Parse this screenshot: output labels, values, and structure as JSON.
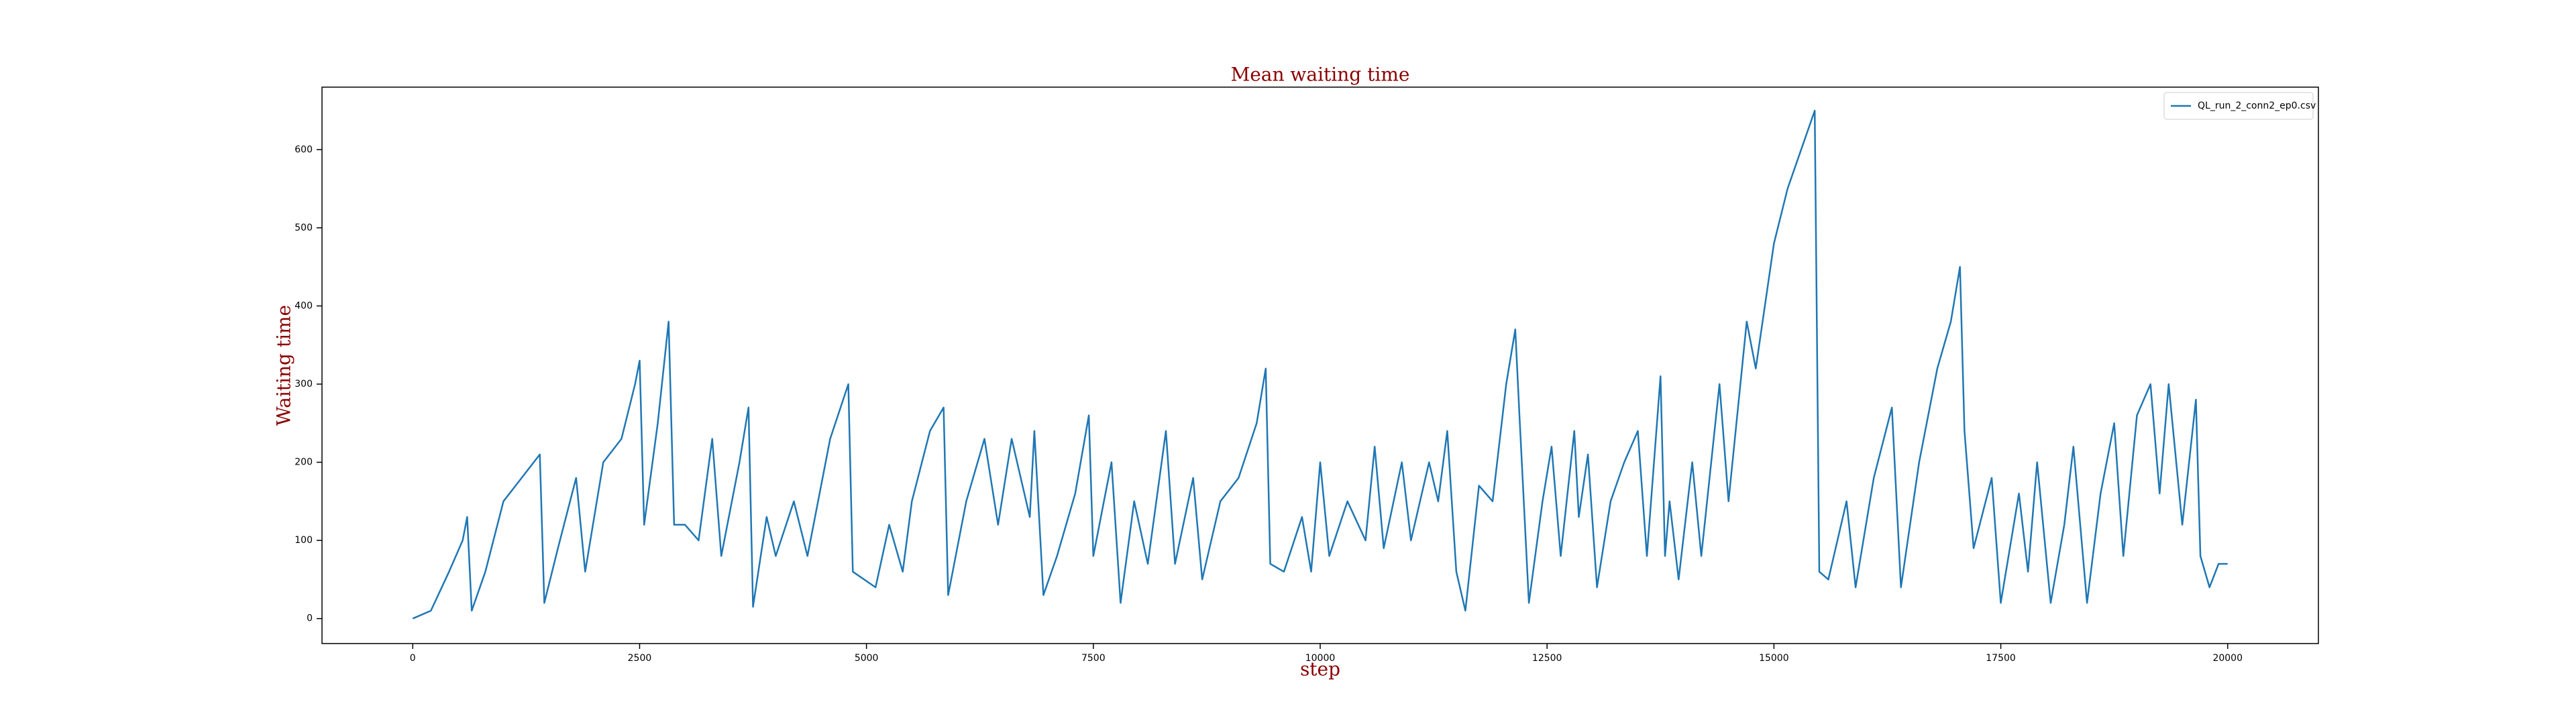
{
  "chart_data": {
    "type": "line",
    "title": "Mean waiting time",
    "x_label": "step",
    "y_label": "Waiting time",
    "xlim": [
      -1000,
      21000
    ],
    "ylim": [
      -32,
      680
    ],
    "xticks": [
      0,
      2500,
      5000,
      7500,
      10000,
      12500,
      15000,
      17500,
      20000
    ],
    "yticks": [
      0,
      100,
      200,
      300,
      400,
      500,
      600
    ],
    "grid": false,
    "legend": "upper right",
    "x": [
      0,
      200,
      400,
      550,
      600,
      650,
      800,
      1000,
      1200,
      1400,
      1450,
      1600,
      1800,
      1900,
      2100,
      2300,
      2450,
      2500,
      2550,
      2700,
      2820,
      2880,
      3000,
      3150,
      3300,
      3400,
      3600,
      3700,
      3750,
      3900,
      4000,
      4200,
      4350,
      4600,
      4800,
      4850,
      5100,
      5250,
      5400,
      5500,
      5700,
      5850,
      5900,
      6100,
      6300,
      6450,
      6600,
      6800,
      6850,
      6950,
      7100,
      7300,
      7450,
      7500,
      7700,
      7800,
      7950,
      8100,
      8300,
      8400,
      8600,
      8700,
      8900,
      9100,
      9300,
      9400,
      9450,
      9600,
      9800,
      9900,
      10000,
      10100,
      10300,
      10500,
      10600,
      10700,
      10900,
      11000,
      11200,
      11300,
      11400,
      11500,
      11600,
      11750,
      11900,
      12050,
      12150,
      12200,
      12300,
      12450,
      12550,
      12650,
      12800,
      12850,
      12950,
      13050,
      13200,
      13350,
      13500,
      13600,
      13750,
      13800,
      13850,
      13950,
      14100,
      14200,
      14400,
      14500,
      14700,
      14800,
      15000,
      15150,
      15300,
      15450,
      15500,
      15600,
      15800,
      15900,
      16100,
      16300,
      16400,
      16600,
      16800,
      16950,
      17050,
      17100,
      17200,
      17400,
      17500,
      17700,
      17800,
      17900,
      18050,
      18200,
      18300,
      18450,
      18600,
      18750,
      18850,
      19000,
      19150,
      19250,
      19350,
      19500,
      19650,
      19700,
      19800,
      19900,
      20000
    ],
    "series": [
      {
        "name": "QL_run_2_conn2_ep0.csv",
        "color": "#1f77b4",
        "values": [
          0,
          10,
          60,
          100,
          130,
          10,
          60,
          150,
          180,
          210,
          20,
          90,
          180,
          60,
          200,
          230,
          300,
          330,
          120,
          250,
          380,
          120,
          120,
          100,
          230,
          80,
          200,
          270,
          15,
          130,
          80,
          150,
          80,
          230,
          300,
          60,
          40,
          120,
          60,
          150,
          240,
          270,
          30,
          150,
          230,
          120,
          230,
          130,
          240,
          30,
          80,
          160,
          260,
          80,
          200,
          20,
          150,
          70,
          240,
          70,
          180,
          50,
          150,
          180,
          250,
          320,
          70,
          60,
          130,
          60,
          200,
          80,
          150,
          100,
          220,
          90,
          200,
          100,
          200,
          150,
          240,
          60,
          10,
          170,
          150,
          300,
          370,
          250,
          20,
          150,
          220,
          80,
          240,
          130,
          210,
          40,
          150,
          200,
          240,
          80,
          310,
          80,
          150,
          50,
          200,
          80,
          300,
          150,
          380,
          320,
          480,
          550,
          600,
          650,
          60,
          50,
          150,
          40,
          180,
          270,
          40,
          200,
          320,
          380,
          450,
          240,
          90,
          180,
          20,
          160,
          60,
          200,
          20,
          120,
          220,
          20,
          160,
          250,
          80,
          260,
          300,
          160,
          300,
          120,
          280,
          80,
          40,
          70,
          70
        ]
      }
    ]
  }
}
